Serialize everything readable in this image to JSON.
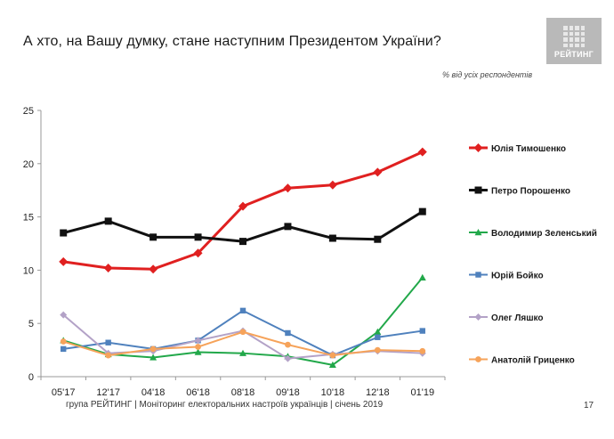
{
  "header": {
    "title": "А хто, на Вашу думку, стане наступним Президентом України?",
    "subtitle": "% від усіх респондентів",
    "logo_text": "РЕЙТИНГ"
  },
  "footer": {
    "text": "група РЕЙТИНГ |  Моніторинг електоральних настроїв українців  |  січень  2019",
    "page_number": "17"
  },
  "chart_data": {
    "type": "line",
    "title": "А хто, на Вашу думку, стане наступним Президентом України?",
    "xlabel": "",
    "ylabel": "",
    "ylim": [
      0,
      25
    ],
    "yticks": [
      0,
      5,
      10,
      15,
      20,
      25
    ],
    "categories": [
      "05'17",
      "12'17",
      "04'18",
      "06'18",
      "08'18",
      "09'18",
      "10'18",
      "12'18",
      "01'19"
    ],
    "legend_position": "right",
    "series": [
      {
        "name": "Юлія Тимошенко",
        "color": "#e02020",
        "marker": "diamond",
        "width": 3,
        "values": [
          10.8,
          10.2,
          10.1,
          11.6,
          16.0,
          17.7,
          18.0,
          19.2,
          21.1
        ]
      },
      {
        "name": "Петро Порошенко",
        "color": "#111111",
        "marker": "square",
        "width": 3,
        "values": [
          13.5,
          14.6,
          13.1,
          13.1,
          12.7,
          14.1,
          13.0,
          12.9,
          15.5
        ]
      },
      {
        "name": "Володимир Зеленський",
        "color": "#22a84a",
        "marker": "triangle",
        "width": 2,
        "values": [
          3.4,
          2.1,
          1.8,
          2.3,
          2.2,
          1.9,
          1.1,
          4.2,
          9.3
        ]
      },
      {
        "name": "Юрій Бойко",
        "color": "#4f81bd",
        "marker": "square",
        "width": 2,
        "values": [
          2.6,
          3.2,
          2.6,
          3.4,
          6.2,
          4.1,
          2.0,
          3.7,
          4.3
        ]
      },
      {
        "name": "Олег Ляшко",
        "color": "#b3a2c7",
        "marker": "diamond",
        "width": 2,
        "values": [
          5.8,
          2.2,
          2.4,
          3.4,
          4.3,
          1.7,
          2.1,
          2.4,
          2.2
        ]
      },
      {
        "name": "Анатолій Гриценко",
        "color": "#f6a35a",
        "marker": "circle",
        "width": 2,
        "values": [
          3.3,
          2.0,
          2.6,
          2.8,
          4.2,
          3.0,
          2.0,
          2.5,
          2.4
        ]
      }
    ]
  }
}
